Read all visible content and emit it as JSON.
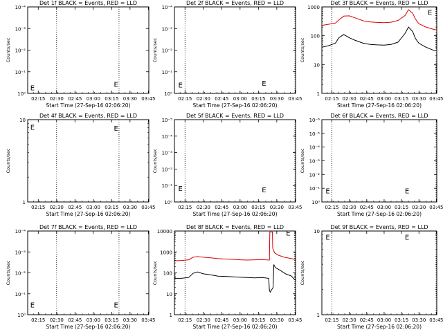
{
  "chart_data": [
    {
      "type": "line",
      "title": "Det 1f BLACK = Events, RED = LLD",
      "xlabel": "Start Time (27-Sep-16 02:06:20)",
      "ylabel": "Counts/sec",
      "yscale": "log",
      "ylim": [
        0.9,
        1.1
      ],
      "yticks": [
        "10⁰",
        "10⁻¹",
        "10⁻²",
        "10⁻³",
        "10⁻⁴"
      ],
      "xlim": [
        2.106,
        3.756
      ],
      "xticks": [
        "02:15",
        "02:30",
        "02:45",
        "03:00",
        "03:15",
        "03:30",
        "03:45"
      ],
      "x_tick_hours": [
        2.25,
        2.5,
        2.75,
        3.0,
        3.25,
        3.5,
        3.75
      ],
      "vlines": [
        2.5,
        3.35
      ],
      "annotations": [
        "E",
        "E"
      ],
      "series": []
    },
    {
      "type": "line",
      "title": "Det 2f BLACK = Events, RED = LLD",
      "xlabel": "Start Time (27-Sep-16 02:06:20)",
      "ylabel": "Counts/sec",
      "yscale": "log",
      "ylim": [
        0.9,
        1.1
      ],
      "yticks": [
        "10⁰",
        "10⁻¹",
        "10⁻²",
        "10⁻³",
        "10⁻⁴"
      ],
      "xlim": [
        2.106,
        3.756
      ],
      "xticks": [
        "02:15",
        "02:30",
        "02:45",
        "03:00",
        "03:15",
        "03:30",
        "03:45"
      ],
      "x_tick_hours": [
        2.25,
        2.5,
        2.75,
        3.0,
        3.25,
        3.5,
        3.75
      ],
      "vlines": [
        2.25,
        3.75
      ],
      "annotations": [
        "E",
        "E"
      ],
      "series": []
    },
    {
      "type": "line",
      "title": "Det 3f BLACK = Events, RED = LLD",
      "xlabel": "Start Time (27-Sep-16 02:06:20)",
      "ylabel": "Counts/sec",
      "yscale": "log",
      "ylim": [
        1,
        1000
      ],
      "yticks": [
        "1",
        "10",
        "100",
        "1000"
      ],
      "xlim": [
        2.106,
        3.756
      ],
      "xticks": [
        "02:15",
        "02:30",
        "02:45",
        "03:00",
        "03:15",
        "03:30",
        "03:45"
      ],
      "x_tick_hours": [
        2.25,
        2.5,
        2.75,
        3.0,
        3.25,
        3.5,
        3.75
      ],
      "vlines": [
        2.25,
        3.75
      ],
      "annotations": [
        "E"
      ],
      "series": [
        {
          "color": "#dd0000",
          "x": [
            2.11,
            2.2,
            2.3,
            2.35,
            2.42,
            2.5,
            2.58,
            2.7,
            2.8,
            2.9,
            3.0,
            3.1,
            3.2,
            3.3,
            3.35,
            3.41,
            3.45,
            3.5,
            3.6,
            3.7,
            3.75
          ],
          "y": [
            230,
            250,
            275,
            350,
            480,
            490,
            420,
            330,
            300,
            290,
            285,
            295,
            340,
            500,
            800,
            600,
            380,
            260,
            200,
            170,
            160
          ]
        },
        {
          "color": "#000000",
          "x": [
            2.11,
            2.2,
            2.3,
            2.35,
            2.42,
            2.5,
            2.58,
            2.7,
            2.8,
            2.9,
            3.0,
            3.1,
            3.2,
            3.3,
            3.35,
            3.41,
            3.45,
            3.5,
            3.6,
            3.7,
            3.75
          ],
          "y": [
            40,
            45,
            55,
            85,
            110,
            85,
            70,
            55,
            50,
            48,
            47,
            50,
            60,
            120,
            200,
            140,
            80,
            55,
            40,
            32,
            30
          ]
        }
      ]
    },
    {
      "type": "line",
      "title": "Det 4f BLACK = Events, RED = LLD",
      "xlabel": "Start Time (27-Sep-16 02:06:20)",
      "ylabel": "Counts/sec",
      "yscale": "log",
      "ylim": [
        1,
        10
      ],
      "yticks": [
        "1",
        "10"
      ],
      "xlim": [
        2.106,
        3.756
      ],
      "xticks": [
        "02:15",
        "02:30",
        "02:45",
        "03:00",
        "03:15",
        "03:30",
        "03:45"
      ],
      "x_tick_hours": [
        2.25,
        2.5,
        2.75,
        3.0,
        3.25,
        3.5,
        3.75
      ],
      "vlines": [
        2.5,
        3.35
      ],
      "annotations": [
        "E",
        "E"
      ],
      "series": []
    },
    {
      "type": "line",
      "title": "Det 5f BLACK = Events, RED = LLD",
      "xlabel": "Start Time (27-Sep-16 02:06:20)",
      "ylabel": "Counts/sec",
      "yscale": "log",
      "ylim": [
        0.9,
        1.1
      ],
      "yticks": [
        "10⁰",
        "10⁻¹",
        "10⁻²",
        "10⁻³",
        "10⁻⁴",
        "10⁻⁵"
      ],
      "xlim": [
        2.106,
        3.756
      ],
      "xticks": [
        "02:15",
        "02:30",
        "02:45",
        "03:00",
        "03:15",
        "03:30",
        "03:45"
      ],
      "x_tick_hours": [
        2.25,
        2.5,
        2.75,
        3.0,
        3.25,
        3.5,
        3.75
      ],
      "vlines": [
        2.25,
        3.75
      ],
      "annotations": [
        "E",
        "E"
      ],
      "series": []
    },
    {
      "type": "line",
      "title": "Det 6f BLACK = Events, RED = LLD",
      "xlabel": "Start Time (27-Sep-16 02:06:20)",
      "ylabel": "Counts/sec",
      "yscale": "log",
      "ylim": [
        0.9,
        1.1
      ],
      "yticks": [
        "10⁰",
        "10⁻¹",
        "10⁻²",
        "10⁻³",
        "10⁻⁴",
        "10⁻⁵",
        "10⁻⁶"
      ],
      "xlim": [
        2.106,
        3.756
      ],
      "xticks": [
        "02:15",
        "02:30",
        "02:45",
        "03:00",
        "03:15",
        "03:30",
        "03:45"
      ],
      "x_tick_hours": [
        2.25,
        2.5,
        2.75,
        3.0,
        3.25,
        3.5,
        3.75
      ],
      "vlines": [
        2.25,
        3.75
      ],
      "annotations": [
        "E",
        "E"
      ],
      "series": []
    },
    {
      "type": "line",
      "title": "Det 7f BLACK = Events, RED = LLD",
      "xlabel": "Start Time (27-Sep-16 02:06:20)",
      "ylabel": "Counts/sec",
      "yscale": "log",
      "ylim": [
        0.9,
        1.1
      ],
      "yticks": [
        "10⁰",
        "10⁻¹",
        "10⁻²",
        "10⁻³",
        "10⁻⁴"
      ],
      "xlim": [
        2.106,
        3.756
      ],
      "xticks": [
        "02:15",
        "02:30",
        "02:45",
        "03:00",
        "03:15",
        "03:30",
        "03:45"
      ],
      "x_tick_hours": [
        2.25,
        2.5,
        2.75,
        3.0,
        3.25,
        3.5,
        3.75
      ],
      "vlines": [
        2.5,
        3.35
      ],
      "annotations": [
        "E",
        "E"
      ],
      "series": []
    },
    {
      "type": "line",
      "title": "Det 8f BLACK = Events, RED = LLD",
      "xlabel": "Start Time (27-Sep-16 02:06:20)",
      "ylabel": "Counts/sec",
      "yscale": "log",
      "ylim": [
        1,
        10000
      ],
      "yticks": [
        "1",
        "10",
        "100",
        "1000",
        "10000"
      ],
      "xlim": [
        2.106,
        3.756
      ],
      "xticks": [
        "02:15",
        "02:30",
        "02:45",
        "03:00",
        "03:15",
        "03:30",
        "03:45"
      ],
      "x_tick_hours": [
        2.25,
        2.5,
        2.75,
        3.0,
        3.25,
        3.5,
        3.75
      ],
      "vlines": [
        2.25,
        3.75
      ],
      "annotations": [
        "E"
      ],
      "series": [
        {
          "color": "#dd0000",
          "x": [
            2.11,
            2.2,
            2.3,
            2.36,
            2.42,
            2.5,
            2.6,
            2.7,
            2.8,
            2.9,
            3.0,
            3.1,
            3.2,
            3.3,
            3.4,
            3.405,
            3.44,
            3.445,
            3.47,
            3.52,
            3.6,
            3.7,
            3.75
          ],
          "y": [
            380,
            390,
            420,
            560,
            600,
            560,
            520,
            480,
            460,
            440,
            420,
            410,
            420,
            430,
            410,
            9000,
            9000,
            1500,
            900,
            700,
            560,
            480,
            440
          ]
        },
        {
          "color": "#000000",
          "x": [
            2.11,
            2.2,
            2.3,
            2.36,
            2.42,
            2.5,
            2.6,
            2.7,
            2.8,
            2.9,
            3.0,
            3.1,
            3.2,
            3.3,
            3.39,
            3.4,
            3.41,
            3.45,
            3.46,
            3.48,
            3.55,
            3.62,
            3.7,
            3.75
          ],
          "y": [
            55,
            55,
            60,
            95,
            110,
            90,
            80,
            70,
            68,
            65,
            62,
            60,
            58,
            60,
            55,
            15,
            12,
            20,
            250,
            180,
            130,
            90,
            70,
            45
          ]
        }
      ]
    },
    {
      "type": "line",
      "title": "Det 9f BLACK = Events, RED = LLD",
      "xlabel": "Start Time (27-Sep-16 02:06:20)",
      "ylabel": "Counts/sec",
      "yscale": "log",
      "ylim": [
        1,
        10
      ],
      "yticks": [
        "1",
        "10"
      ],
      "xlim": [
        2.106,
        3.756
      ],
      "xticks": [
        "02:15",
        "02:30",
        "02:45",
        "03:00",
        "03:15",
        "03:30",
        "03:45"
      ],
      "x_tick_hours": [
        2.25,
        2.5,
        2.75,
        3.0,
        3.25,
        3.5,
        3.75
      ],
      "vlines": [
        2.25,
        3.75
      ],
      "annotations": [
        "E",
        "E"
      ],
      "series": []
    }
  ]
}
